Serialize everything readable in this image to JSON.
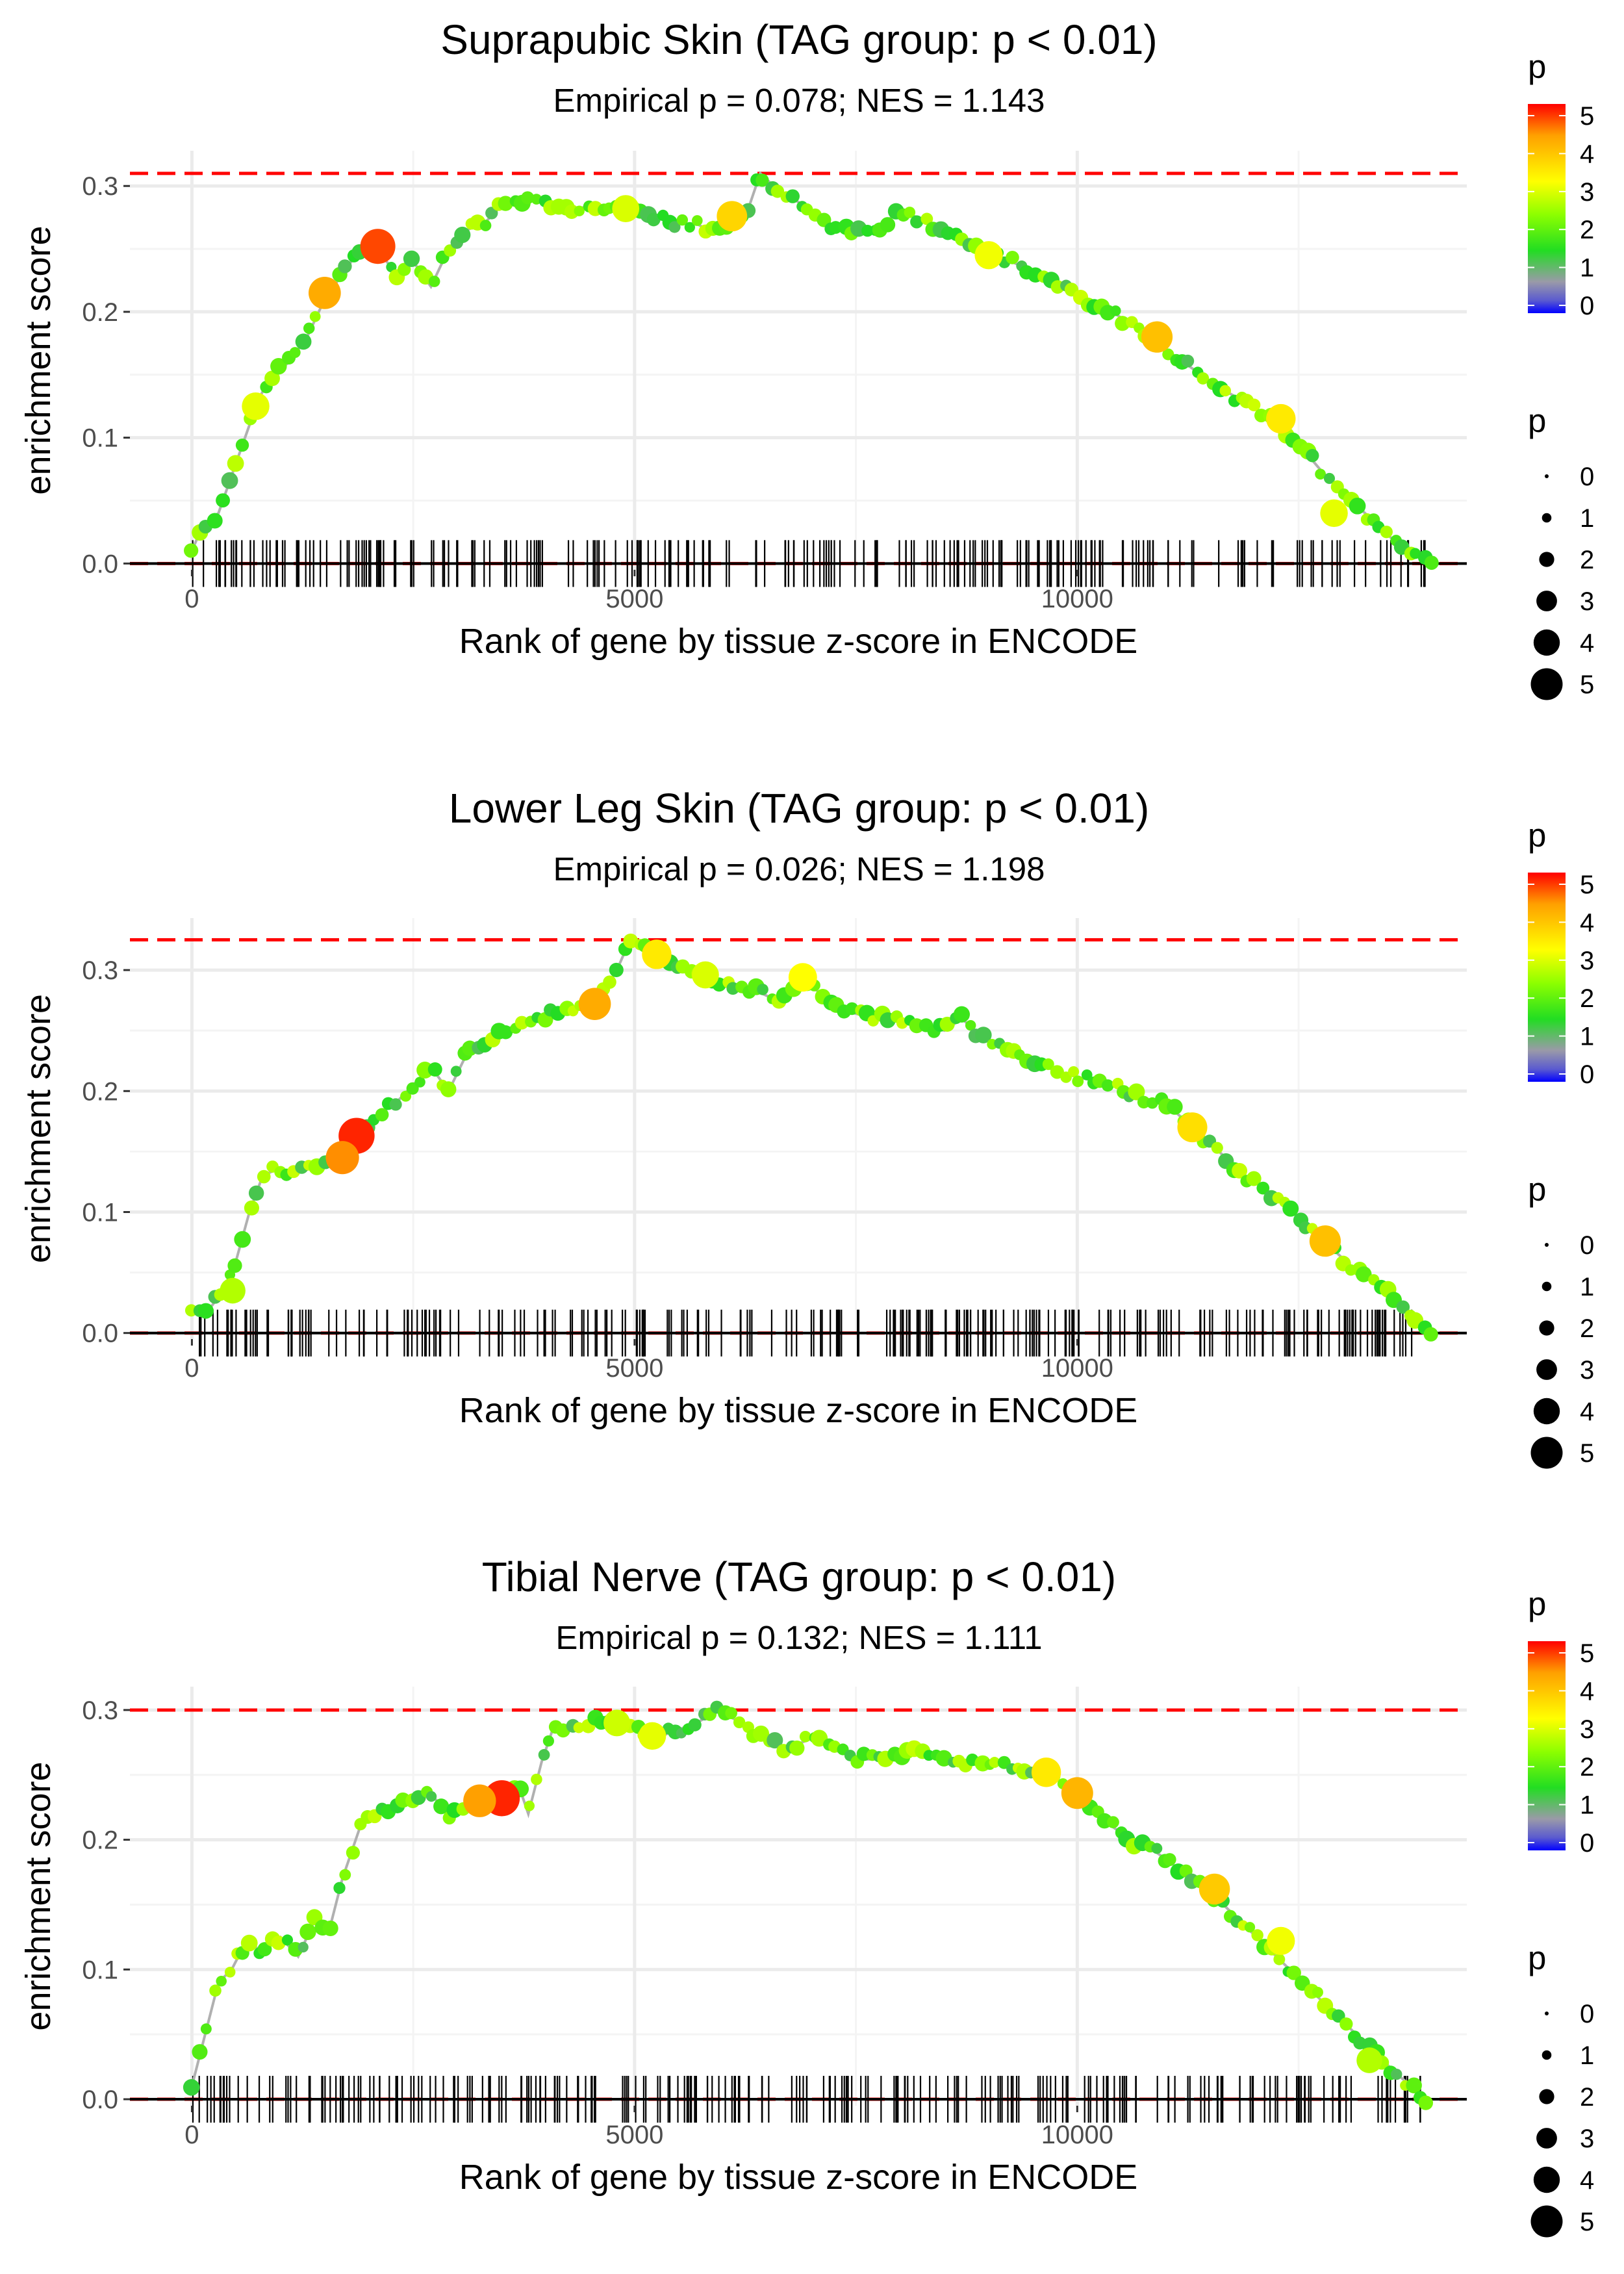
{
  "chart_data": [
    {
      "type": "line",
      "title": "Suprapubic Skin (TAG group: p < 0.01)",
      "subtitle": "Empirical p = 0.078; NES = 1.143",
      "xlabel": "Rank of gene by tissue z-score in ENCODE",
      "ylabel": "enrichment score",
      "xlim": [
        -700,
        14400
      ],
      "ylim": [
        -0.005,
        0.328
      ],
      "xticks": [
        0,
        5000,
        10000
      ],
      "xtick_labels": [
        "0",
        "5000",
        "10000"
      ],
      "yticks": [
        0.0,
        0.1,
        0.2,
        0.3
      ],
      "ytick_labels": [
        "0.0",
        "0.1",
        "0.2",
        "0.3"
      ],
      "max_es": 0.31,
      "min_es": 0.0,
      "curve": [
        [
          0,
          0.01
        ],
        [
          120,
          0.03
        ],
        [
          300,
          0.04
        ],
        [
          450,
          0.07
        ],
        [
          600,
          0.1
        ],
        [
          750,
          0.13
        ],
        [
          900,
          0.15
        ],
        [
          1100,
          0.16
        ],
        [
          1300,
          0.18
        ],
        [
          1500,
          0.21
        ],
        [
          1700,
          0.23
        ],
        [
          1900,
          0.25
        ],
        [
          2000,
          0.257
        ],
        [
          2100,
          0.25
        ],
        [
          2300,
          0.23
        ],
        [
          2500,
          0.24
        ],
        [
          2700,
          0.22
        ],
        [
          2900,
          0.25
        ],
        [
          3100,
          0.265
        ],
        [
          3300,
          0.27
        ],
        [
          3500,
          0.285
        ],
        [
          3700,
          0.285
        ],
        [
          3900,
          0.29
        ],
        [
          4100,
          0.283
        ],
        [
          4300,
          0.28
        ],
        [
          4500,
          0.285
        ],
        [
          4700,
          0.28
        ],
        [
          4900,
          0.285
        ],
        [
          5100,
          0.28
        ],
        [
          5300,
          0.275
        ],
        [
          5500,
          0.27
        ],
        [
          5700,
          0.27
        ],
        [
          5900,
          0.262
        ],
        [
          6100,
          0.272
        ],
        [
          6300,
          0.285
        ],
        [
          6420,
          0.31
        ],
        [
          6600,
          0.298
        ],
        [
          6900,
          0.285
        ],
        [
          7100,
          0.27
        ],
        [
          7300,
          0.265
        ],
        [
          7600,
          0.262
        ],
        [
          7800,
          0.27
        ],
        [
          8000,
          0.28
        ],
        [
          8200,
          0.275
        ],
        [
          8500,
          0.265
        ],
        [
          8800,
          0.256
        ],
        [
          9100,
          0.245
        ],
        [
          9500,
          0.232
        ],
        [
          9800,
          0.22
        ],
        [
          10100,
          0.21
        ],
        [
          10400,
          0.2
        ],
        [
          10700,
          0.185
        ],
        [
          11000,
          0.17
        ],
        [
          11300,
          0.155
        ],
        [
          11600,
          0.14
        ],
        [
          11900,
          0.128
        ],
        [
          12200,
          0.115
        ],
        [
          12500,
          0.095
        ],
        [
          12800,
          0.07
        ],
        [
          13100,
          0.05
        ],
        [
          13400,
          0.03
        ],
        [
          13700,
          0.01
        ],
        [
          14000,
          0.0
        ]
      ],
      "big_points": [
        {
          "x": 2100,
          "y": 0.252,
          "p": 5.0
        },
        {
          "x": 1500,
          "y": 0.215,
          "p": 4.4
        },
        {
          "x": 6100,
          "y": 0.276,
          "p": 4.0
        },
        {
          "x": 10900,
          "y": 0.18,
          "p": 4.2
        },
        {
          "x": 12300,
          "y": 0.115,
          "p": 3.8
        },
        {
          "x": 9000,
          "y": 0.245,
          "p": 3.5
        },
        {
          "x": 4900,
          "y": 0.282,
          "p": 3.3
        },
        {
          "x": 12900,
          "y": 0.04,
          "p": 3.4
        },
        {
          "x": 720,
          "y": 0.125,
          "p": 3.4
        }
      ],
      "rug_seed": 11,
      "rug_count": 230
    },
    {
      "type": "line",
      "title": "Lower Leg Skin (TAG group: p < 0.01)",
      "subtitle": "Empirical p = 0.026; NES = 1.198",
      "xlabel": "Rank of gene by tissue z-score in ENCODE",
      "ylabel": "enrichment score",
      "xlim": [
        -700,
        14400
      ],
      "ylim": [
        -0.005,
        0.343
      ],
      "xticks": [
        0,
        5000,
        10000
      ],
      "xtick_labels": [
        "0",
        "5000",
        "10000"
      ],
      "yticks": [
        0.0,
        0.1,
        0.2,
        0.3
      ],
      "ytick_labels": [
        "0.0",
        "0.1",
        "0.2",
        "0.3"
      ],
      "max_es": 0.325,
      "min_es": 0.0,
      "curve": [
        [
          0,
          0.015
        ],
        [
          200,
          0.02
        ],
        [
          350,
          0.035
        ],
        [
          500,
          0.06
        ],
        [
          650,
          0.1
        ],
        [
          800,
          0.13
        ],
        [
          950,
          0.135
        ],
        [
          1100,
          0.13
        ],
        [
          1300,
          0.135
        ],
        [
          1500,
          0.142
        ],
        [
          1700,
          0.15
        ],
        [
          1900,
          0.17
        ],
        [
          2100,
          0.18
        ],
        [
          2300,
          0.19
        ],
        [
          2500,
          0.205
        ],
        [
          2700,
          0.22
        ],
        [
          2900,
          0.2
        ],
        [
          3100,
          0.23
        ],
        [
          3300,
          0.24
        ],
        [
          3500,
          0.25
        ],
        [
          3700,
          0.255
        ],
        [
          3900,
          0.26
        ],
        [
          4100,
          0.265
        ],
        [
          4300,
          0.265
        ],
        [
          4600,
          0.275
        ],
        [
          4800,
          0.3
        ],
        [
          4950,
          0.325
        ],
        [
          5200,
          0.315
        ],
        [
          5500,
          0.3
        ],
        [
          5800,
          0.295
        ],
        [
          6100,
          0.285
        ],
        [
          6400,
          0.282
        ],
        [
          6600,
          0.275
        ],
        [
          6900,
          0.295
        ],
        [
          7100,
          0.28
        ],
        [
          7300,
          0.268
        ],
        [
          7600,
          0.262
        ],
        [
          7900,
          0.26
        ],
        [
          8200,
          0.255
        ],
        [
          8500,
          0.25
        ],
        [
          8700,
          0.26
        ],
        [
          8900,
          0.245
        ],
        [
          9200,
          0.235
        ],
        [
          9500,
          0.225
        ],
        [
          9800,
          0.215
        ],
        [
          10100,
          0.21
        ],
        [
          10400,
          0.205
        ],
        [
          10700,
          0.195
        ],
        [
          11000,
          0.19
        ],
        [
          11300,
          0.17
        ],
        [
          11600,
          0.15
        ],
        [
          11900,
          0.13
        ],
        [
          12200,
          0.115
        ],
        [
          12500,
          0.095
        ],
        [
          12800,
          0.075
        ],
        [
          13100,
          0.055
        ],
        [
          13400,
          0.04
        ],
        [
          13700,
          0.02
        ],
        [
          14000,
          0.0
        ]
      ],
      "big_points": [
        {
          "x": 1860,
          "y": 0.163,
          "p": 5.2
        },
        {
          "x": 1700,
          "y": 0.145,
          "p": 4.6
        },
        {
          "x": 4550,
          "y": 0.272,
          "p": 4.4
        },
        {
          "x": 5250,
          "y": 0.313,
          "p": 3.8
        },
        {
          "x": 6900,
          "y": 0.294,
          "p": 3.6
        },
        {
          "x": 11300,
          "y": 0.17,
          "p": 3.9
        },
        {
          "x": 12800,
          "y": 0.076,
          "p": 4.2
        },
        {
          "x": 5800,
          "y": 0.296,
          "p": 3.3
        },
        {
          "x": 460,
          "y": 0.035,
          "p": 3.0
        }
      ],
      "rug_seed": 29,
      "rug_count": 250
    },
    {
      "type": "line",
      "title": "Tibial Nerve (TAG group: p < 0.01)",
      "subtitle": "Empirical p = 0.132; NES = 1.111",
      "xlabel": "Rank of gene by tissue z-score in ENCODE",
      "ylabel": "enrichment score",
      "xlim": [
        -700,
        14400
      ],
      "ylim": [
        -0.005,
        0.318
      ],
      "xticks": [
        0,
        5000,
        10000
      ],
      "xtick_labels": [
        "0",
        "5000",
        "10000"
      ],
      "yticks": [
        0.0,
        0.1,
        0.2,
        0.3
      ],
      "ytick_labels": [
        "0.0",
        "0.1",
        "0.2",
        "0.3"
      ],
      "max_es": 0.3,
      "min_es": 0.0,
      "curve": [
        [
          0,
          0.01
        ],
        [
          150,
          0.05
        ],
        [
          300,
          0.09
        ],
        [
          450,
          0.1
        ],
        [
          600,
          0.12
        ],
        [
          800,
          0.115
        ],
        [
          1000,
          0.125
        ],
        [
          1200,
          0.11
        ],
        [
          1400,
          0.14
        ],
        [
          1550,
          0.13
        ],
        [
          1700,
          0.17
        ],
        [
          1900,
          0.21
        ],
        [
          2100,
          0.22
        ],
        [
          2300,
          0.225
        ],
        [
          2500,
          0.23
        ],
        [
          2700,
          0.235
        ],
        [
          2900,
          0.22
        ],
        [
          3100,
          0.225
        ],
        [
          3300,
          0.23
        ],
        [
          3500,
          0.235
        ],
        [
          3700,
          0.24
        ],
        [
          3800,
          0.22
        ],
        [
          3950,
          0.26
        ],
        [
          4100,
          0.29
        ],
        [
          4300,
          0.285
        ],
        [
          4500,
          0.29
        ],
        [
          4700,
          0.292
        ],
        [
          4900,
          0.29
        ],
        [
          5100,
          0.283
        ],
        [
          5300,
          0.28
        ],
        [
          5500,
          0.285
        ],
        [
          5700,
          0.29
        ],
        [
          5950,
          0.3
        ],
        [
          6200,
          0.29
        ],
        [
          6500,
          0.275
        ],
        [
          6700,
          0.27
        ],
        [
          7000,
          0.278
        ],
        [
          7300,
          0.268
        ],
        [
          7600,
          0.262
        ],
        [
          7900,
          0.262
        ],
        [
          8200,
          0.27
        ],
        [
          8500,
          0.262
        ],
        [
          8800,
          0.258
        ],
        [
          9100,
          0.258
        ],
        [
          9400,
          0.255
        ],
        [
          9700,
          0.25
        ],
        [
          10000,
          0.235
        ],
        [
          10300,
          0.215
        ],
        [
          10600,
          0.2
        ],
        [
          10900,
          0.19
        ],
        [
          11200,
          0.175
        ],
        [
          11500,
          0.16
        ],
        [
          11800,
          0.14
        ],
        [
          12100,
          0.12
        ],
        [
          12400,
          0.1
        ],
        [
          12700,
          0.08
        ],
        [
          13000,
          0.06
        ],
        [
          13300,
          0.04
        ],
        [
          13600,
          0.02
        ],
        [
          13950,
          0.0
        ]
      ],
      "big_points": [
        {
          "x": 3500,
          "y": 0.232,
          "p": 5.2
        },
        {
          "x": 3250,
          "y": 0.23,
          "p": 4.5
        },
        {
          "x": 10000,
          "y": 0.236,
          "p": 4.3
        },
        {
          "x": 11550,
          "y": 0.162,
          "p": 4.1
        },
        {
          "x": 9650,
          "y": 0.252,
          "p": 3.8
        },
        {
          "x": 5200,
          "y": 0.28,
          "p": 3.4
        },
        {
          "x": 12300,
          "y": 0.122,
          "p": 3.5
        },
        {
          "x": 4800,
          "y": 0.29,
          "p": 3.2
        },
        {
          "x": 13300,
          "y": 0.03,
          "p": 3.0
        }
      ],
      "rug_seed": 47,
      "rug_count": 240
    }
  ],
  "legend": {
    "color_title": "p",
    "color_ticks": [
      "0",
      "1",
      "2",
      "3",
      "4",
      "5"
    ],
    "size_title": "p",
    "size_ticks": [
      "0",
      "1",
      "2",
      "3",
      "4",
      "5"
    ]
  },
  "colors": {
    "gradient": [
      "#0000ff",
      "#9090a8",
      "#22dd22",
      "#8cff00",
      "#ffff00",
      "#ffa000",
      "#ff0000"
    ],
    "dashed": "#ff0000",
    "curve": "#b0b0b0",
    "grid": "#ebebeb",
    "axis_text": "#4d4d4d"
  }
}
